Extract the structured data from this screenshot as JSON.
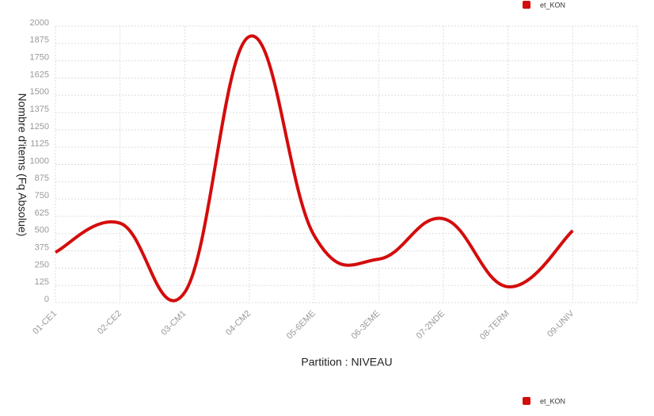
{
  "chart_data": [
    {
      "type": "line",
      "x_label": "Partition : NIVEAU",
      "y_label": "Nombre d'items (Fq Absolue)",
      "categories": [
        "01-CE1",
        "02-CE2",
        "03-CM1",
        "04-CM2",
        "05-6EME",
        "06-3EME",
        "07-2NDE",
        "08-TERM",
        "09-UNIV"
      ],
      "series": [
        {
          "name": "et_KON",
          "color": "#d40c0c",
          "values": [
            365,
            575,
            75,
            1925,
            487,
            315,
            607,
            115,
            521
          ]
        }
      ],
      "ylim": [
        0,
        2000
      ],
      "yticks": [
        0,
        125,
        250,
        375,
        500,
        625,
        750,
        875,
        1000,
        1125,
        1250,
        1375,
        1500,
        1625,
        1750,
        1875,
        2000
      ],
      "grid": true,
      "legend": "top-right"
    },
    {
      "type": "line",
      "series": [
        {
          "name": "et_KON",
          "color": "#d40c0c"
        }
      ],
      "legend": "top-right"
    }
  ]
}
